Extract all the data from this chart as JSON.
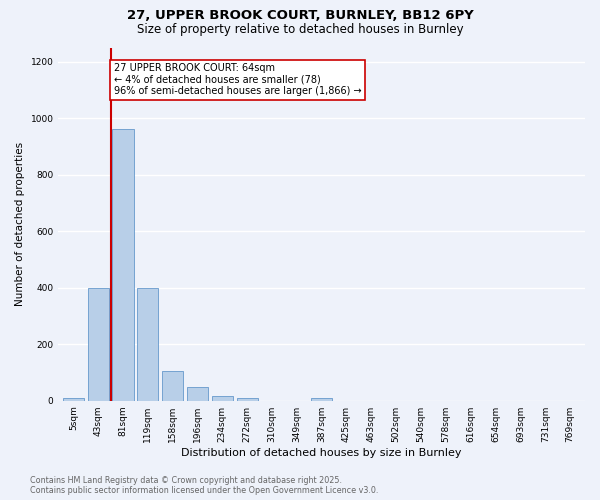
{
  "title": "27, UPPER BROOK COURT, BURNLEY, BB12 6PY",
  "subtitle": "Size of property relative to detached houses in Burnley",
  "xlabel": "Distribution of detached houses by size in Burnley",
  "ylabel": "Number of detached properties",
  "bar_labels": [
    "5sqm",
    "43sqm",
    "81sqm",
    "119sqm",
    "158sqm",
    "196sqm",
    "234sqm",
    "272sqm",
    "310sqm",
    "349sqm",
    "387sqm",
    "425sqm",
    "463sqm",
    "502sqm",
    "540sqm",
    "578sqm",
    "616sqm",
    "654sqm",
    "693sqm",
    "731sqm",
    "769sqm"
  ],
  "bar_values": [
    10,
    400,
    960,
    400,
    105,
    50,
    18,
    10,
    0,
    0,
    10,
    0,
    0,
    0,
    0,
    0,
    0,
    0,
    0,
    0,
    0
  ],
  "bar_color": "#b8cfe8",
  "bar_edge_color": "#6699cc",
  "vline_x": 1.5,
  "vline_color": "#cc0000",
  "annotation_text": "27 UPPER BROOK COURT: 64sqm\n← 4% of detached houses are smaller (78)\n96% of semi-detached houses are larger (1,866) →",
  "annotation_box_color": "#ffffff",
  "annotation_box_edge": "#cc0000",
  "ylim": [
    0,
    1250
  ],
  "yticks": [
    0,
    200,
    400,
    600,
    800,
    1000,
    1200
  ],
  "footer_line1": "Contains HM Land Registry data © Crown copyright and database right 2025.",
  "footer_line2": "Contains public sector information licensed under the Open Government Licence v3.0.",
  "bg_color": "#eef2fa",
  "plot_bg_color": "#eef2fa",
  "grid_color": "#ffffff",
  "title_fontsize": 9.5,
  "subtitle_fontsize": 8.5,
  "label_fontsize": 7.5,
  "tick_fontsize": 6.5,
  "footer_fontsize": 5.8,
  "annot_fontsize": 7.0
}
